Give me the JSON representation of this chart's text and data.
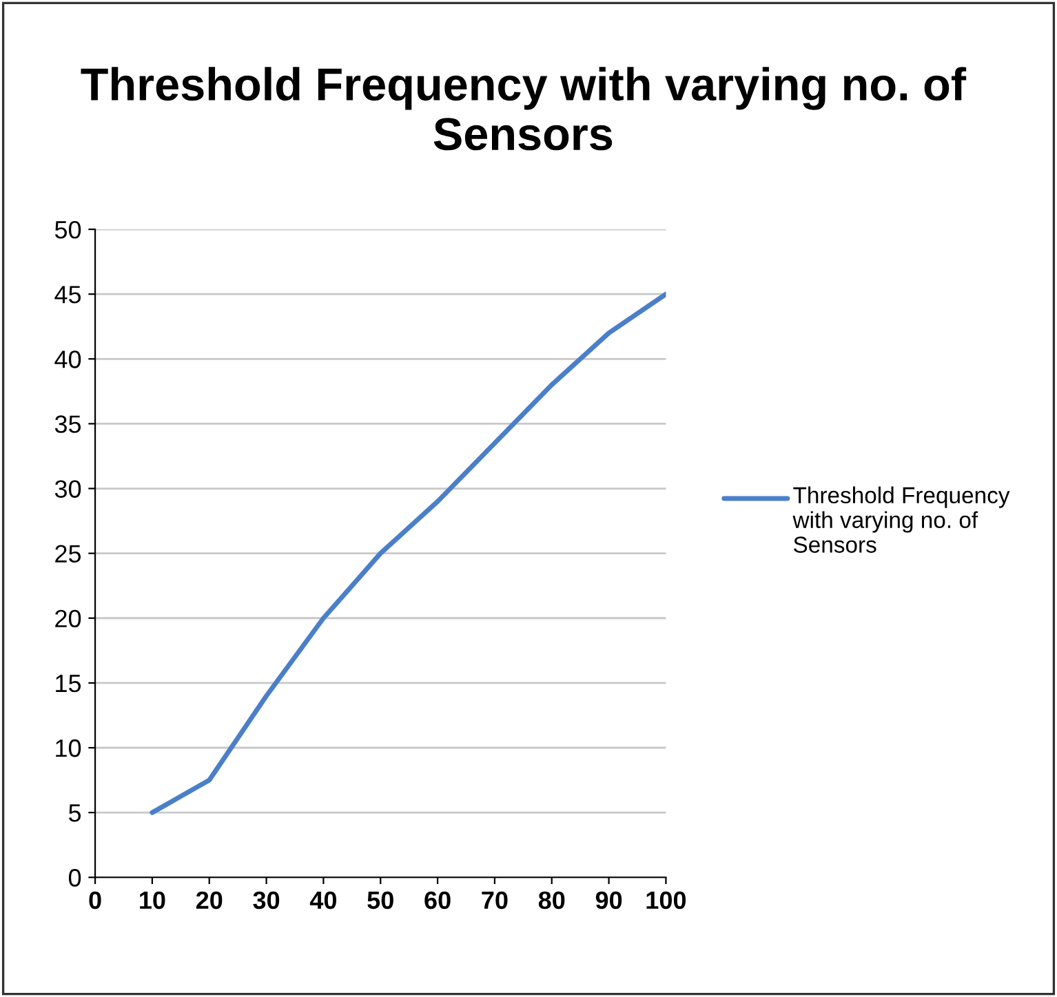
{
  "chart_data": {
    "type": "line",
    "title": "Threshold Frequency with varying no. of Sensors",
    "x": [
      10,
      20,
      30,
      40,
      50,
      60,
      70,
      80,
      90,
      100
    ],
    "series": [
      {
        "name": "Threshold Frequency with varying no. of Sensors",
        "color": "#4a7fc9",
        "values": [
          5,
          7.5,
          14,
          20,
          25,
          29,
          33.5,
          38,
          42,
          45
        ]
      }
    ],
    "xlim": [
      0,
      100
    ],
    "xticks": [
      0,
      10,
      20,
      30,
      40,
      50,
      60,
      70,
      80,
      90,
      100
    ],
    "ylim": [
      0,
      50
    ],
    "yticks": [
      0,
      5,
      10,
      15,
      20,
      25,
      30,
      35,
      40,
      45,
      50
    ],
    "grid": "y",
    "legend": "right",
    "marker": "none",
    "line_style": "solid"
  }
}
